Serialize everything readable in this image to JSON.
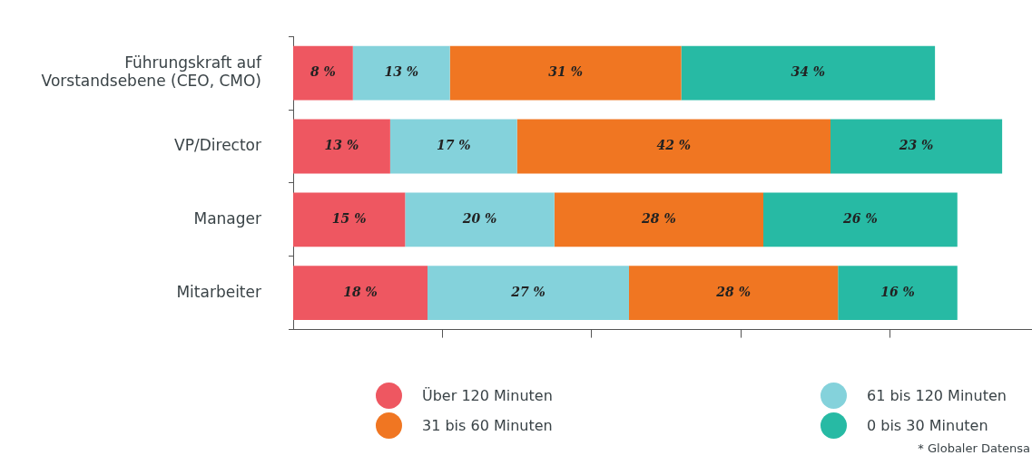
{
  "chart_data": {
    "type": "bar",
    "orientation": "horizontal",
    "stacked": true,
    "categories": [
      "Führungskraft auf Vorstandsebene (CEO, CMO)",
      "VP/Director",
      "Manager",
      "Mitarbeiter"
    ],
    "series": [
      {
        "name": "Über 120 Minuten",
        "color": "#ee5761",
        "values": [
          8,
          13,
          15,
          18
        ],
        "value_labels": [
          "8 %",
          "13 %",
          "15 %",
          "18 %"
        ]
      },
      {
        "name": "61 bis 120 Minuten",
        "color": "#84d2db",
        "values": [
          13,
          17,
          20,
          27
        ],
        "value_labels": [
          "13 %",
          "17 %",
          "20 %",
          "27 %"
        ]
      },
      {
        "name": "31 bis 60 Minuten",
        "color": "#f07622",
        "values": [
          31,
          42,
          28,
          28
        ],
        "value_labels": [
          "31 %",
          "42 %",
          "28 %",
          "28 %"
        ]
      },
      {
        "name": "0 bis 30 Minuten",
        "color": "#27baa4",
        "values": [
          34,
          23,
          26,
          16
        ],
        "value_labels": [
          "34 %",
          "23 %",
          "26 %",
          "16 %"
        ]
      }
    ],
    "xlim": [
      0,
      99
    ],
    "xticks": [
      {
        "value": 20,
        "label": null
      },
      {
        "value": 40,
        "label": null
      },
      {
        "value": 60,
        "label": null
      },
      {
        "value": 80,
        "label": null
      }
    ],
    "tick_labels": "y",
    "grid": false,
    "legend": "bottom",
    "annotations": [
      "* Globaler Datensa"
    ]
  }
}
